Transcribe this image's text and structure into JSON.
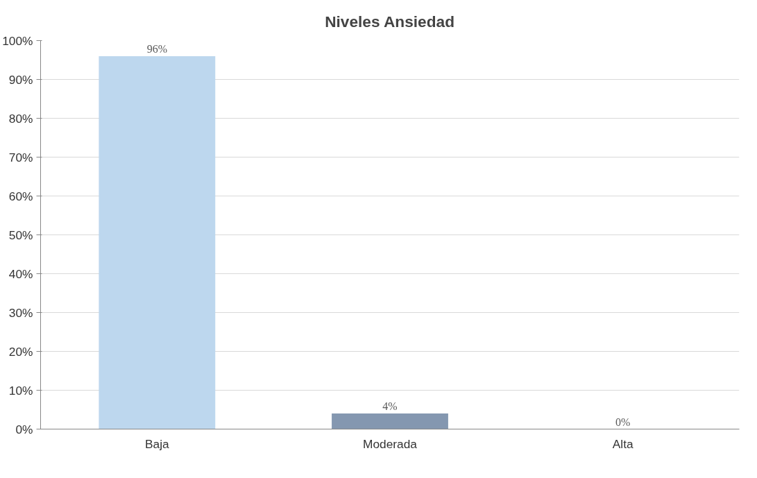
{
  "chart_data": {
    "type": "bar",
    "title": "Niveles Ansiedad",
    "categories": [
      "Baja",
      "Moderada",
      "Alta"
    ],
    "values": [
      96,
      4,
      0
    ],
    "colors": [
      "#bdd7ee",
      "#8497b0",
      "#8497b0"
    ],
    "value_labels": [
      "96%",
      "4%",
      "0%"
    ],
    "ylim": [
      0,
      100
    ],
    "yticks": [
      {
        "value": 0,
        "label": "0%"
      },
      {
        "value": 10,
        "label": "10%"
      },
      {
        "value": 20,
        "label": "20%"
      },
      {
        "value": 30,
        "label": "30%"
      },
      {
        "value": 40,
        "label": "40%"
      },
      {
        "value": 50,
        "label": "50%"
      },
      {
        "value": 60,
        "label": "60%"
      },
      {
        "value": 70,
        "label": "70%"
      },
      {
        "value": 80,
        "label": "80%"
      },
      {
        "value": 90,
        "label": "90%"
      },
      {
        "value": 100,
        "label": "100%"
      }
    ],
    "grid": "y"
  }
}
